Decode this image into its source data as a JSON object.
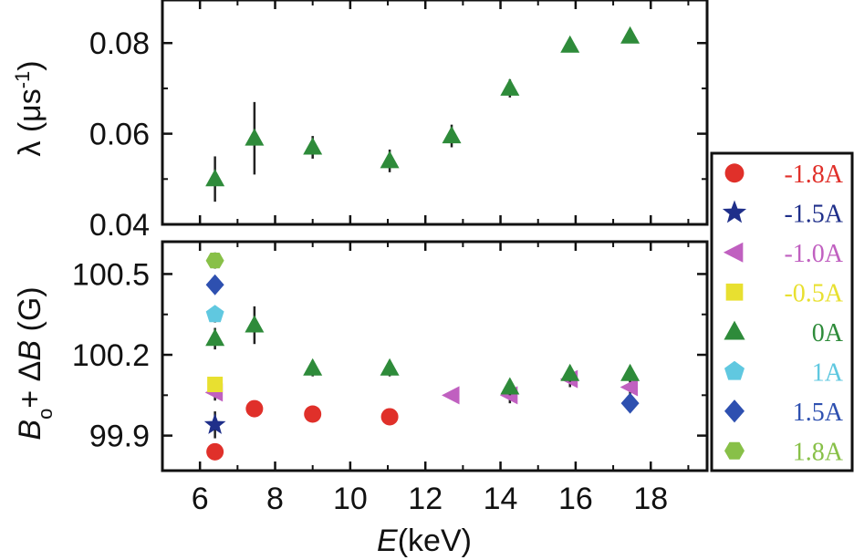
{
  "chart_data": {
    "type": "scatter",
    "x": {
      "label_symbol": "E",
      "label_unit": "(keV)",
      "range": [
        5,
        19.5
      ],
      "ticks": [
        6,
        8,
        10,
        12,
        14,
        16,
        18
      ],
      "tick_labels": [
        "6",
        "8",
        "10",
        "12",
        "14",
        "16",
        "18"
      ]
    },
    "panels": [
      {
        "id": "top",
        "ylabel_symbol": "λ",
        "ylabel_unit": "(μs",
        "ylabel_sup": "-1",
        "ylabel_close": ")",
        "ylim": [
          0.04,
          0.0895
        ],
        "yticks": [
          0.04,
          0.06,
          0.08
        ],
        "ytick_labels": [
          "0.04",
          "0.06",
          "0.08"
        ],
        "series": [
          {
            "name": "0A",
            "marker": "triangle",
            "color": "#2e8b3a",
            "points": [
              {
                "x": 6.4,
                "y": 0.05,
                "err": 0.005
              },
              {
                "x": 7.45,
                "y": 0.059,
                "err": 0.008
              },
              {
                "x": 9.0,
                "y": 0.057,
                "err": 0.0025
              },
              {
                "x": 11.05,
                "y": 0.054,
                "err": 0.0025
              },
              {
                "x": 12.7,
                "y": 0.0595,
                "err": 0.0025
              },
              {
                "x": 14.25,
                "y": 0.07,
                "err": 0.002
              },
              {
                "x": 15.85,
                "y": 0.0795,
                "err": 0.0015
              },
              {
                "x": 17.45,
                "y": 0.0815,
                "err": 0.0015
              }
            ]
          }
        ]
      },
      {
        "id": "bottom",
        "ylabel_b": "B",
        "ylabel_sub": "o",
        "ylabel_mid": "+ Δ",
        "ylabel_b2": "B",
        "ylabel_unit": " (G)",
        "ylim": [
          99.77,
          100.62
        ],
        "yticks": [
          99.9,
          100.2,
          100.5
        ],
        "ytick_labels": [
          "99.9",
          "100.2",
          "100.5"
        ],
        "series": [
          {
            "name": "-1.8A",
            "marker": "circle",
            "color": "#e0302a",
            "points": [
              {
                "x": 6.4,
                "y": 99.84,
                "err": 0.03
              },
              {
                "x": 7.45,
                "y": 100.0,
                "err": 0.02
              },
              {
                "x": 9.0,
                "y": 99.98,
                "err": 0.015
              },
              {
                "x": 11.05,
                "y": 99.97,
                "err": 0.015
              }
            ]
          },
          {
            "name": "-1.5A",
            "marker": "star",
            "color": "#1f2f8a",
            "points": [
              {
                "x": 6.4,
                "y": 99.94,
                "err": 0.05
              }
            ]
          },
          {
            "name": "-1.0A",
            "marker": "triangle-left",
            "color": "#c060c0",
            "points": [
              {
                "x": 6.4,
                "y": 100.06,
                "err": 0.03
              },
              {
                "x": 12.7,
                "y": 100.05,
                "err": 0.015
              },
              {
                "x": 14.25,
                "y": 100.05,
                "err": 0.03
              },
              {
                "x": 15.85,
                "y": 100.11,
                "err": 0.03
              },
              {
                "x": 17.45,
                "y": 100.08,
                "err": 0.03
              }
            ]
          },
          {
            "name": "-0.5A",
            "marker": "square",
            "color": "#e8e030",
            "points": [
              {
                "x": 6.4,
                "y": 100.09,
                "err": 0.02
              }
            ]
          },
          {
            "name": "0A",
            "marker": "triangle",
            "color": "#2e8b3a",
            "points": [
              {
                "x": 6.4,
                "y": 100.26,
                "err": 0.04
              },
              {
                "x": 7.45,
                "y": 100.31,
                "err": 0.07
              },
              {
                "x": 9.0,
                "y": 100.15,
                "err": 0.03
              },
              {
                "x": 11.05,
                "y": 100.15,
                "err": 0.03
              },
              {
                "x": 14.25,
                "y": 100.08,
                "err": 0.03
              },
              {
                "x": 15.85,
                "y": 100.13,
                "err": 0.03
              },
              {
                "x": 17.45,
                "y": 100.13,
                "err": 0.03
              }
            ]
          },
          {
            "name": "1A",
            "marker": "pentagon",
            "color": "#60c8e0",
            "points": [
              {
                "x": 6.4,
                "y": 100.35,
                "err": 0.03
              }
            ]
          },
          {
            "name": "1.5A",
            "marker": "diamond",
            "color": "#2e50b0",
            "points": [
              {
                "x": 6.4,
                "y": 100.46,
                "err": 0.03
              },
              {
                "x": 17.45,
                "y": 100.02,
                "err": 0.03
              }
            ]
          },
          {
            "name": "1.8A",
            "marker": "hexagon",
            "color": "#88c048",
            "points": [
              {
                "x": 6.4,
                "y": 100.55,
                "err": 0.03
              }
            ]
          }
        ]
      }
    ],
    "legend": {
      "placement": "right",
      "entries": [
        {
          "label": "-1.8A",
          "marker": "circle",
          "color": "#e0302a"
        },
        {
          "label": "-1.5A",
          "marker": "star",
          "color": "#1f2f8a"
        },
        {
          "label": "-1.0A",
          "marker": "triangle-left",
          "color": "#c060c0"
        },
        {
          "label": "-0.5A",
          "marker": "square",
          "color": "#e8e030"
        },
        {
          "label": "0A",
          "marker": "triangle",
          "color": "#2e8b3a"
        },
        {
          "label": "1A",
          "marker": "pentagon",
          "color": "#60c8e0"
        },
        {
          "label": "1.5A",
          "marker": "diamond",
          "color": "#2e50b0"
        },
        {
          "label": "1.8A",
          "marker": "hexagon",
          "color": "#88c048"
        }
      ]
    }
  }
}
